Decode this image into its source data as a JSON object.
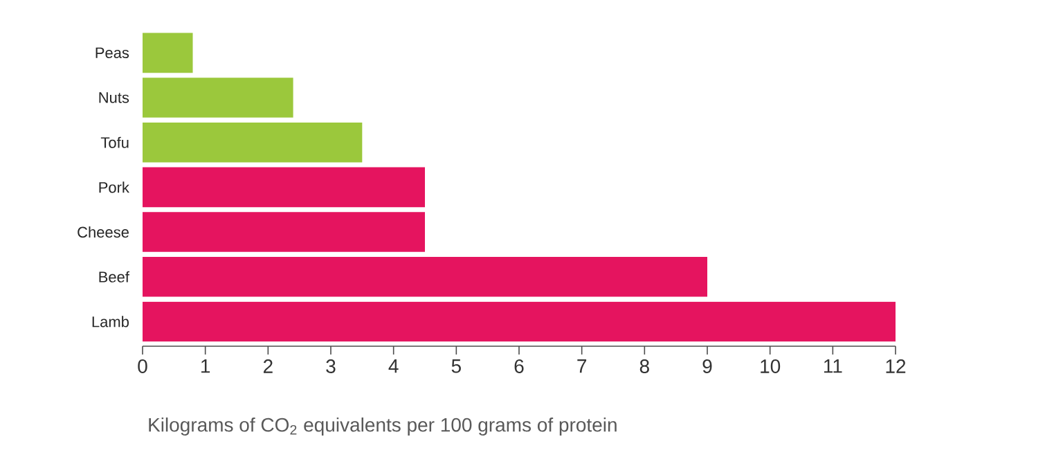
{
  "chart_data": {
    "type": "bar",
    "orientation": "horizontal",
    "categories": [
      "Peas",
      "Nuts",
      "Tofu",
      "Pork",
      "Cheese",
      "Beef",
      "Lamb"
    ],
    "values": [
      0.8,
      2.4,
      3.5,
      4.5,
      4.5,
      9,
      12
    ],
    "colors": [
      "#9bc83c",
      "#9bc83c",
      "#9bc83c",
      "#e5145f",
      "#e5145f",
      "#e5145f",
      "#e5145f"
    ],
    "xlim": [
      0,
      12
    ],
    "xticks": [
      0,
      1,
      2,
      3,
      4,
      5,
      6,
      7,
      8,
      9,
      10,
      11,
      12
    ],
    "xlabel": "Kilograms of CO$_{2}$ equivalents per 100 grams of protein"
  }
}
